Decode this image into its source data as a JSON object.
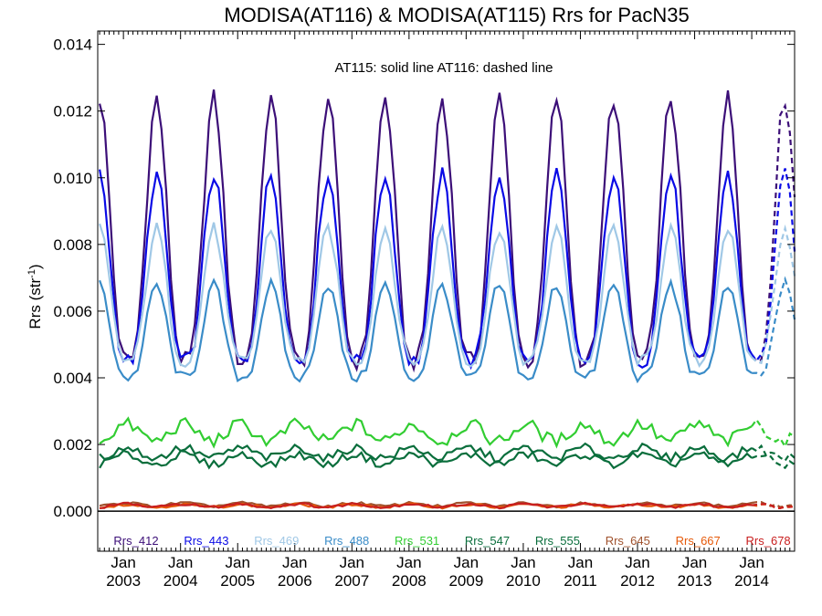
{
  "chart_data": {
    "type": "line",
    "title": "MODISA(AT116) & MODISA(AT115)  Rrs for PacN35",
    "ylabel": "Rrs (str⁻¹)",
    "ylabel_base": "Rrs (str",
    "ylabel_sup": "-1",
    "ylabel_close": ")",
    "annotation": "AT115: solid line   AT116: dashed line",
    "ylim": [
      -0.0012,
      0.0144
    ],
    "xlim": [
      2002.55,
      2014.75
    ],
    "yticks": [
      0.0,
      0.002,
      0.004,
      0.006,
      0.008,
      0.01,
      0.012,
      0.014
    ],
    "ytick_labels": [
      "0.000",
      "0.002",
      "0.004",
      "0.006",
      "0.008",
      "0.010",
      "0.012",
      "0.014"
    ],
    "x_month_label": "Jan",
    "x_years": [
      "2003",
      "2004",
      "2005",
      "2006",
      "2007",
      "2008",
      "2009",
      "2010",
      "2011",
      "2012",
      "2013",
      "2014"
    ],
    "grid": false,
    "legend_position": "bottom inside plot",
    "dashed_from": 2014.08,
    "series": [
      {
        "name": "Rrs_412",
        "color": "#3c0f78",
        "min": 0.0045,
        "max": 0.0124,
        "phase": 0.58,
        "noise": 0.00028,
        "sharp": 1.6
      },
      {
        "name": "Rrs_443",
        "color": "#0a0ae6",
        "min": 0.0045,
        "max": 0.0101,
        "phase": 0.58,
        "noise": 0.00022,
        "sharp": 1.6
      },
      {
        "name": "Rrs_469",
        "color": "#a0c8e6",
        "min": 0.0045,
        "max": 0.0085,
        "phase": 0.58,
        "noise": 0.00018,
        "sharp": 1.6
      },
      {
        "name": "Rrs_488",
        "color": "#3a8cc8",
        "min": 0.004,
        "max": 0.0068,
        "phase": 0.58,
        "noise": 0.00016,
        "sharp": 1.6
      },
      {
        "name": "Rrs_531",
        "color": "#32cd32",
        "min": 0.0021,
        "max": 0.0026,
        "phase": 0.05,
        "noise": 0.0002,
        "sharp": 1.0
      },
      {
        "name": "Rrs_547",
        "color": "#0a6e3c",
        "min": 0.0016,
        "max": 0.0019,
        "phase": 0.05,
        "noise": 0.00013,
        "sharp": 1.0
      },
      {
        "name": "Rrs_555",
        "color": "#0a6e3c",
        "min": 0.0014,
        "max": 0.0017,
        "phase": 0.05,
        "noise": 0.00012,
        "sharp": 1.0
      },
      {
        "name": "Rrs_645",
        "color": "#a0522d",
        "min": 0.00015,
        "max": 0.00025,
        "phase": 0.05,
        "noise": 4e-05,
        "sharp": 1.0
      },
      {
        "name": "Rrs_667",
        "color": "#e65a0a",
        "min": 0.00012,
        "max": 0.0002,
        "phase": 0.05,
        "noise": 4e-05,
        "sharp": 1.0
      },
      {
        "name": "Rrs_678",
        "color": "#c81e1e",
        "min": 0.00012,
        "max": 0.00022,
        "phase": 0.05,
        "noise": 4e-05,
        "sharp": 1.0
      }
    ]
  }
}
